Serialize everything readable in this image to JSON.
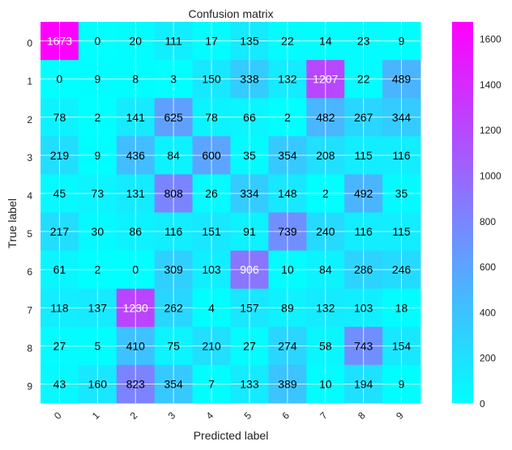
{
  "chart_data": {
    "type": "heatmap",
    "title": "Confusion matrix",
    "xlabel": "Predicted label",
    "ylabel": "True label",
    "x_tick_labels": [
      "0",
      "1",
      "2",
      "3",
      "4",
      "5",
      "6",
      "7",
      "8",
      "9"
    ],
    "y_tick_labels": [
      "0",
      "1",
      "2",
      "3",
      "4",
      "5",
      "6",
      "7",
      "8",
      "9"
    ],
    "matrix": [
      [
        1673,
        0,
        20,
        111,
        17,
        135,
        22,
        14,
        23,
        9
      ],
      [
        0,
        9,
        8,
        3,
        150,
        338,
        132,
        1207,
        22,
        489
      ],
      [
        78,
        2,
        141,
        625,
        78,
        66,
        2,
        482,
        267,
        344
      ],
      [
        219,
        9,
        436,
        84,
        600,
        35,
        354,
        208,
        115,
        116
      ],
      [
        45,
        73,
        131,
        808,
        26,
        334,
        148,
        2,
        492,
        35
      ],
      [
        217,
        30,
        86,
        116,
        151,
        91,
        739,
        240,
        116,
        115
      ],
      [
        61,
        2,
        0,
        309,
        103,
        906,
        10,
        84,
        286,
        246
      ],
      [
        118,
        137,
        1230,
        262,
        4,
        157,
        89,
        132,
        103,
        18
      ],
      [
        27,
        5,
        410,
        75,
        210,
        27,
        274,
        58,
        743,
        154
      ],
      [
        43,
        160,
        823,
        354,
        7,
        133,
        389,
        10,
        194,
        9
      ]
    ],
    "colormap": [
      "#00ffff",
      "#ff00ff"
    ],
    "color_range": [
      0,
      1673
    ],
    "colorbar_ticks": [
      "0",
      "200",
      "400",
      "600",
      "800",
      "1000",
      "1200",
      "1400",
      "1600"
    ],
    "colorbar_tick_values": [
      0,
      200,
      400,
      600,
      800,
      1000,
      1200,
      1400,
      1600
    ],
    "grid": true,
    "value_text_colors": {
      "dark": "#000000",
      "light": "#ffffff"
    }
  }
}
